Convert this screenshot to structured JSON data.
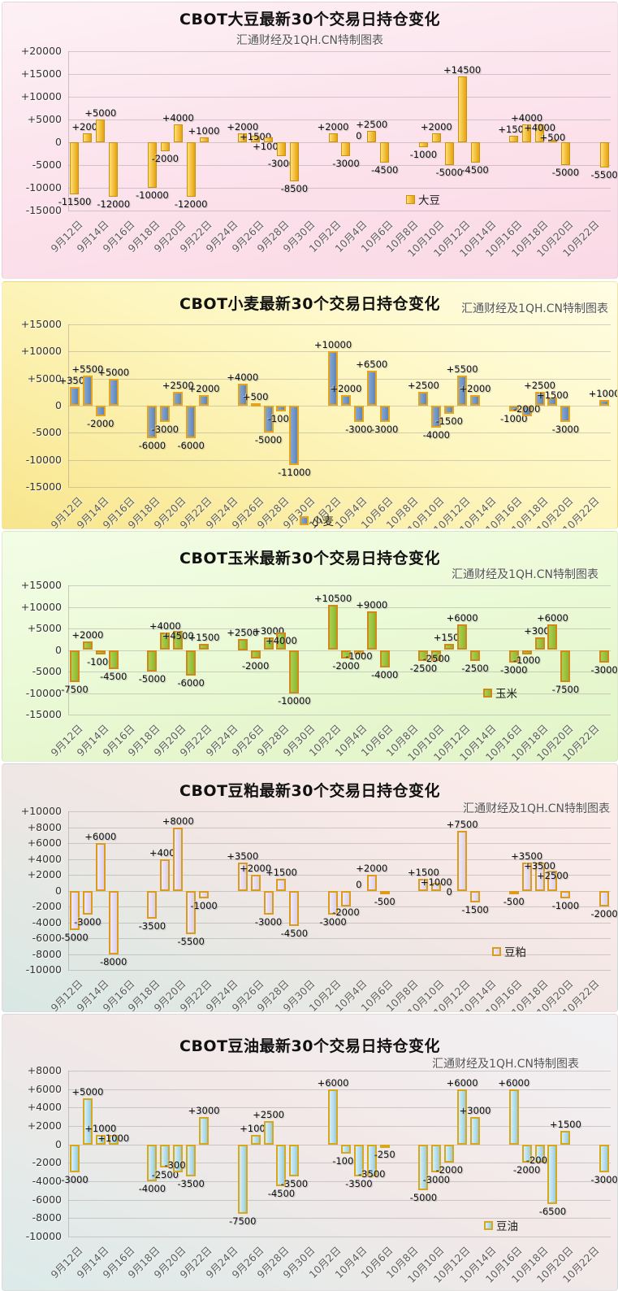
{
  "axis": {
    "x_tick_labels": [
      "9月12日",
      "9月14日",
      "9月16日",
      "9月18日",
      "9月20日",
      "9月22日",
      "9月24日",
      "9月26日",
      "9月28日",
      "9月30日",
      "10月2日",
      "10月4日",
      "10月6日",
      "10月8日",
      "10月10日",
      "10月12日",
      "10月14日",
      "10月16日",
      "10月18日",
      "10月20日",
      "10月22日"
    ],
    "x_tick_slots": [
      0,
      2,
      4,
      6,
      8,
      10,
      12,
      14,
      16,
      18,
      20,
      22,
      24,
      26,
      28,
      30,
      32,
      34,
      36,
      38,
      40
    ],
    "trading_day_slots": [
      0,
      1,
      2,
      3,
      6,
      7,
      8,
      9,
      10,
      13,
      14,
      15,
      16,
      17,
      20,
      21,
      22,
      23,
      24,
      27,
      28,
      29,
      30,
      31,
      34,
      35,
      36,
      37,
      38,
      41
    ],
    "trading_day_dates": [
      "9月12日",
      "9月13日",
      "9月14日",
      "9月15日",
      "9月18日",
      "9月19日",
      "9月20日",
      "9月21日",
      "9月22日",
      "9月25日",
      "9月26日",
      "9月27日",
      "9月28日",
      "9月29日",
      "10月2日",
      "10月3日",
      "10月4日",
      "10月5日",
      "10月6日",
      "10月9日",
      "10月10日",
      "10月11日",
      "10月12日",
      "10月13日",
      "10月16日",
      "10月17日",
      "10月18日",
      "10月19日",
      "10月20日",
      "10月23日"
    ]
  },
  "chart_data": [
    {
      "type": "bar",
      "key": "soybean",
      "title": "CBOT大豆最新30个交易日持仓变化",
      "subtitle": "汇通财经及1QH.CN特制图表",
      "legend": "大豆",
      "values": [
        -11500,
        2000,
        5000,
        -12000,
        -10000,
        -2000,
        4000,
        -12000,
        1000,
        2000,
        1500,
        1000,
        -3000,
        -8500,
        2000,
        -3000,
        0,
        2500,
        -4500,
        -1000,
        2000,
        -5000,
        14500,
        -4500,
        1500,
        4000,
        4000,
        500,
        -5000,
        -5500
      ],
      "ylim": [
        -15000,
        20000
      ],
      "ytick_step": 5000,
      "colors": {
        "bg": [
          "#fdf1f5",
          "#fce4ed",
          "#fad9e5"
        ],
        "bar_light": "#ffdf76",
        "bar_dark": "#e6a30e",
        "bar_border": "#c8920e"
      }
    },
    {
      "type": "bar",
      "key": "wheat",
      "title": "CBOT小麦最新30个交易日持仓变化",
      "subtitle": "汇通财经及1QH.CN特制图表",
      "legend": "小麦",
      "values": [
        3500,
        5500,
        -2000,
        5000,
        -6000,
        -3000,
        2500,
        -6000,
        2000,
        4000,
        500,
        -5000,
        -1000,
        -11000,
        10000,
        2000,
        -3000,
        6500,
        -3000,
        2500,
        -4000,
        -1500,
        5500,
        2000,
        -1000,
        -2000,
        2500,
        1500,
        -3000,
        1000
      ],
      "ylim": [
        -15000,
        15000
      ],
      "ytick_step": 5000,
      "colors": {
        "bg": [
          "#fffde4",
          "#fdf6c0",
          "#f8e58c"
        ],
        "bar_light": "#84a7d2",
        "bar_dark": "#5f85ba",
        "bar_border": "#e6a41e"
      }
    },
    {
      "type": "bar",
      "key": "corn",
      "title": "CBOT玉米最新30个交易日持仓变化",
      "subtitle": "汇通财经及1QH.CN特制图表",
      "legend": "玉米",
      "values": [
        -7500,
        2000,
        -1000,
        -4500,
        -5000,
        4000,
        4500,
        -6000,
        1500,
        2500,
        -2000,
        3000,
        4000,
        -10000,
        10500,
        -2000,
        -1000,
        9000,
        -4000,
        -2500,
        -2500,
        1500,
        6000,
        -2500,
        -3000,
        -1000,
        3000,
        6000,
        -7500,
        -3000
      ],
      "ylim": [
        -15000,
        15000
      ],
      "ytick_step": 5000,
      "colors": {
        "bg": [
          "#f3fde6",
          "#ebfad7",
          "#e1f4c6"
        ],
        "bar_light": "#accf52",
        "bar_dark": "#8cb92e",
        "bar_border": "#d0881a"
      }
    },
    {
      "type": "bar",
      "key": "soymeal",
      "title": "CBOT豆粕最新30个交易日持仓变化",
      "subtitle": "汇通财经及1QH.CN特制图表",
      "legend": "豆粕",
      "values": [
        -5000,
        -3000,
        6000,
        -8000,
        -3500,
        4000,
        8000,
        -5500,
        -1000,
        3500,
        2000,
        -3000,
        1500,
        -4500,
        -3000,
        -2000,
        0,
        2000,
        -500,
        1500,
        1000,
        0,
        7500,
        -1500,
        -500,
        3500,
        3500,
        2500,
        -1000,
        -2000
      ],
      "ylim": [
        -10000,
        10000
      ],
      "ytick_step": 2000,
      "colors": {
        "bg": [
          "#fdedeb",
          "#f3e7e5",
          "#d8e8e4"
        ],
        "bar_light": "#f0e8f8",
        "bar_dark": "#dcd0ea",
        "bar_border": "#dc9b18"
      }
    },
    {
      "type": "bar",
      "key": "soyoil",
      "title": "CBOT豆油最新30个交易日持仓变化",
      "subtitle": "汇通财经及1QH.CN特制图表",
      "legend": "豆油",
      "values": [
        -3000,
        5000,
        1000,
        1000,
        -4000,
        -2500,
        -3000,
        -3500,
        3000,
        -7500,
        1000,
        2500,
        -4500,
        -3500,
        6000,
        -1000,
        -3500,
        -3500,
        -250,
        -5000,
        -3000,
        -2000,
        6000,
        3000,
        6000,
        -2000,
        -2000,
        -6500,
        1500,
        -3000
      ],
      "ylim": [
        -10000,
        8000
      ],
      "ytick_step": 2000,
      "colors": {
        "bg": [
          "#f1f1f3",
          "#f3e8e8",
          "#dbebe9"
        ],
        "bar_light": "#d8eef6",
        "bar_dark": "#98cde0",
        "bar_border": "#d6a91c"
      }
    }
  ]
}
